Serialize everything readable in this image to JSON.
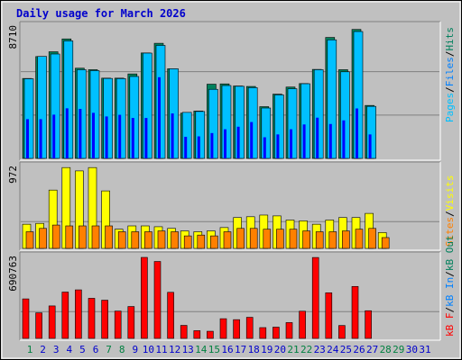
{
  "title": "Daily usage for March 2026",
  "colors": {
    "bg": "#c0c0c0",
    "hits": "#00805c",
    "files": "#0080ff",
    "pages": "#00c0ff",
    "dark_pages": "#0000ff",
    "visits": "#ffff00",
    "sites": "#ff8000",
    "kb": "#ff0000",
    "title": "#0000cc",
    "day_weekend": "#008040",
    "day_weekday": "#0000cc"
  },
  "chart_data": [
    {
      "type": "bar",
      "title": "Daily usage for March 2026",
      "categories": [
        "1",
        "2",
        "3",
        "4",
        "5",
        "6",
        "7",
        "8",
        "9",
        "10",
        "11",
        "12",
        "13",
        "14",
        "15",
        "16",
        "17",
        "18",
        "19",
        "20",
        "21",
        "22",
        "23",
        "24",
        "25",
        "26",
        "27",
        "28",
        "29",
        "30",
        "31"
      ],
      "ymax_label": "8710",
      "ymax": 8710,
      "series": [
        {
          "name": "Hits",
          "values": [
            5300,
            6750,
            7070,
            7920,
            5980,
            5880,
            5320,
            5320,
            5600,
            6990,
            7630,
            5940,
            3000,
            3140,
            4920,
            4940,
            4800,
            4770,
            3430,
            4260,
            4730,
            4960,
            5900,
            8020,
            5880,
            8550,
            3510,
            0,
            0,
            0,
            0
          ]
        },
        {
          "name": "Files",
          "values": [
            5280,
            6760,
            6920,
            7790,
            5880,
            5820,
            5300,
            5290,
            5430,
            6980,
            7490,
            5940,
            3050,
            3110,
            4580,
            4830,
            4780,
            4690,
            3340,
            4210,
            4620,
            4950,
            5880,
            7860,
            5740,
            8410,
            3450,
            0,
            0,
            0,
            0
          ]
        },
        {
          "name": "Pages",
          "values": [
            2600,
            2600,
            2900,
            3320,
            3280,
            3020,
            2780,
            2890,
            2680,
            2680,
            5380,
            2980,
            1430,
            1460,
            1680,
            1930,
            2100,
            2410,
            1400,
            1590,
            1930,
            2250,
            2700,
            2280,
            2520,
            3310,
            1590,
            0,
            0,
            0,
            0
          ]
        }
      ],
      "legend": [
        "Pages",
        "Files",
        "Hits"
      ]
    },
    {
      "type": "bar",
      "categories": [
        "1",
        "2",
        "3",
        "4",
        "5",
        "6",
        "7",
        "8",
        "9",
        "10",
        "11",
        "12",
        "13",
        "14",
        "15",
        "16",
        "17",
        "18",
        "19",
        "20",
        "21",
        "22",
        "23",
        "24",
        "25",
        "26",
        "27",
        "28",
        "29",
        "30",
        "31"
      ],
      "ymax_label": "972",
      "ymax": 972,
      "series": [
        {
          "name": "Visits",
          "values": [
            290,
            300,
            700,
            970,
            930,
            970,
            690,
            230,
            270,
            270,
            260,
            240,
            210,
            200,
            210,
            250,
            370,
            380,
            400,
            390,
            340,
            330,
            290,
            340,
            370,
            370,
            420,
            190,
            0,
            0,
            0
          ]
        },
        {
          "name": "Sites",
          "values": [
            200,
            240,
            280,
            270,
            270,
            270,
            270,
            200,
            200,
            200,
            210,
            200,
            150,
            160,
            150,
            200,
            240,
            240,
            230,
            230,
            230,
            210,
            200,
            200,
            210,
            230,
            240,
            130,
            0,
            0,
            0
          ]
        }
      ],
      "legend": [
        "Visits",
        "Sites"
      ]
    },
    {
      "type": "bar",
      "categories": [
        "1",
        "2",
        "3",
        "4",
        "5",
        "6",
        "7",
        "8",
        "9",
        "10",
        "11",
        "12",
        "13",
        "14",
        "15",
        "16",
        "17",
        "18",
        "19",
        "20",
        "21",
        "22",
        "23",
        "24",
        "25",
        "26",
        "27",
        "28",
        "29",
        "30",
        "31"
      ],
      "ymax_label": "690763",
      "ymax": 690763,
      "series": [
        {
          "name": "kB F",
          "values": [
            337000,
            218000,
            277000,
            395000,
            414000,
            342000,
            326000,
            233000,
            272000,
            690763,
            656000,
            393000,
            111000,
            66000,
            61000,
            168000,
            160000,
            180000,
            92000,
            96000,
            135000,
            232000,
            690000,
            389000,
            110000,
            443000,
            236000,
            0,
            0,
            0,
            0
          ]
        }
      ],
      "legend": [
        "kB F",
        "kB In",
        "kB Out"
      ]
    }
  ],
  "legend_top": {
    "pages": "Pages",
    "files": "Files",
    "hits": "Hits",
    "sep": "/"
  },
  "legend_mid": {
    "sites": "Sites",
    "visits": "Visits",
    "sep": "/"
  },
  "legend_bot": {
    "kbf": "kB F",
    "kbin": "kB In",
    "kbout": "kB Out",
    "sep": "/"
  },
  "weekend_days": [
    "1",
    "7",
    "8",
    "14",
    "15",
    "21",
    "22",
    "28",
    "29"
  ]
}
